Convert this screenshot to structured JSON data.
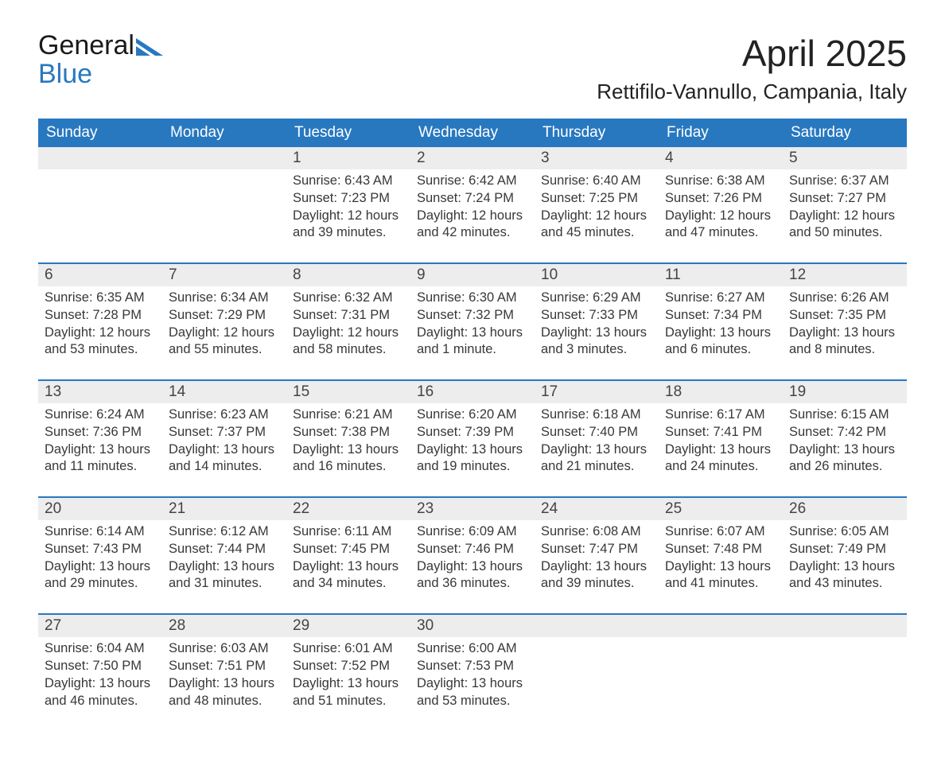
{
  "brand": {
    "part1": "General",
    "part2": "Blue"
  },
  "title": "April 2025",
  "subtitle": "Rettifilo-Vannullo, Campania, Italy",
  "colors": {
    "header_bg": "#2878c0",
    "header_text": "#ffffff",
    "daynum_bg": "#ededed",
    "week_divider": "#2878c0",
    "body_text": "#383838",
    "page_bg": "#ffffff"
  },
  "typography": {
    "title_fontsize": 46,
    "subtitle_fontsize": 26,
    "header_fontsize": 19,
    "daynum_fontsize": 19,
    "body_fontsize": 16.5,
    "font_family": "Arial"
  },
  "days_of_week": [
    "Sunday",
    "Monday",
    "Tuesday",
    "Wednesday",
    "Thursday",
    "Friday",
    "Saturday"
  ],
  "weeks": [
    [
      {
        "num": "",
        "lines": []
      },
      {
        "num": "",
        "lines": []
      },
      {
        "num": "1",
        "lines": [
          "Sunrise: 6:43 AM",
          "Sunset: 7:23 PM",
          "Daylight: 12 hours",
          "and 39 minutes."
        ]
      },
      {
        "num": "2",
        "lines": [
          "Sunrise: 6:42 AM",
          "Sunset: 7:24 PM",
          "Daylight: 12 hours",
          "and 42 minutes."
        ]
      },
      {
        "num": "3",
        "lines": [
          "Sunrise: 6:40 AM",
          "Sunset: 7:25 PM",
          "Daylight: 12 hours",
          "and 45 minutes."
        ]
      },
      {
        "num": "4",
        "lines": [
          "Sunrise: 6:38 AM",
          "Sunset: 7:26 PM",
          "Daylight: 12 hours",
          "and 47 minutes."
        ]
      },
      {
        "num": "5",
        "lines": [
          "Sunrise: 6:37 AM",
          "Sunset: 7:27 PM",
          "Daylight: 12 hours",
          "and 50 minutes."
        ]
      }
    ],
    [
      {
        "num": "6",
        "lines": [
          "Sunrise: 6:35 AM",
          "Sunset: 7:28 PM",
          "Daylight: 12 hours",
          "and 53 minutes."
        ]
      },
      {
        "num": "7",
        "lines": [
          "Sunrise: 6:34 AM",
          "Sunset: 7:29 PM",
          "Daylight: 12 hours",
          "and 55 minutes."
        ]
      },
      {
        "num": "8",
        "lines": [
          "Sunrise: 6:32 AM",
          "Sunset: 7:31 PM",
          "Daylight: 12 hours",
          "and 58 minutes."
        ]
      },
      {
        "num": "9",
        "lines": [
          "Sunrise: 6:30 AM",
          "Sunset: 7:32 PM",
          "Daylight: 13 hours",
          "and 1 minute."
        ]
      },
      {
        "num": "10",
        "lines": [
          "Sunrise: 6:29 AM",
          "Sunset: 7:33 PM",
          "Daylight: 13 hours",
          "and 3 minutes."
        ]
      },
      {
        "num": "11",
        "lines": [
          "Sunrise: 6:27 AM",
          "Sunset: 7:34 PM",
          "Daylight: 13 hours",
          "and 6 minutes."
        ]
      },
      {
        "num": "12",
        "lines": [
          "Sunrise: 6:26 AM",
          "Sunset: 7:35 PM",
          "Daylight: 13 hours",
          "and 8 minutes."
        ]
      }
    ],
    [
      {
        "num": "13",
        "lines": [
          "Sunrise: 6:24 AM",
          "Sunset: 7:36 PM",
          "Daylight: 13 hours",
          "and 11 minutes."
        ]
      },
      {
        "num": "14",
        "lines": [
          "Sunrise: 6:23 AM",
          "Sunset: 7:37 PM",
          "Daylight: 13 hours",
          "and 14 minutes."
        ]
      },
      {
        "num": "15",
        "lines": [
          "Sunrise: 6:21 AM",
          "Sunset: 7:38 PM",
          "Daylight: 13 hours",
          "and 16 minutes."
        ]
      },
      {
        "num": "16",
        "lines": [
          "Sunrise: 6:20 AM",
          "Sunset: 7:39 PM",
          "Daylight: 13 hours",
          "and 19 minutes."
        ]
      },
      {
        "num": "17",
        "lines": [
          "Sunrise: 6:18 AM",
          "Sunset: 7:40 PM",
          "Daylight: 13 hours",
          "and 21 minutes."
        ]
      },
      {
        "num": "18",
        "lines": [
          "Sunrise: 6:17 AM",
          "Sunset: 7:41 PM",
          "Daylight: 13 hours",
          "and 24 minutes."
        ]
      },
      {
        "num": "19",
        "lines": [
          "Sunrise: 6:15 AM",
          "Sunset: 7:42 PM",
          "Daylight: 13 hours",
          "and 26 minutes."
        ]
      }
    ],
    [
      {
        "num": "20",
        "lines": [
          "Sunrise: 6:14 AM",
          "Sunset: 7:43 PM",
          "Daylight: 13 hours",
          "and 29 minutes."
        ]
      },
      {
        "num": "21",
        "lines": [
          "Sunrise: 6:12 AM",
          "Sunset: 7:44 PM",
          "Daylight: 13 hours",
          "and 31 minutes."
        ]
      },
      {
        "num": "22",
        "lines": [
          "Sunrise: 6:11 AM",
          "Sunset: 7:45 PM",
          "Daylight: 13 hours",
          "and 34 minutes."
        ]
      },
      {
        "num": "23",
        "lines": [
          "Sunrise: 6:09 AM",
          "Sunset: 7:46 PM",
          "Daylight: 13 hours",
          "and 36 minutes."
        ]
      },
      {
        "num": "24",
        "lines": [
          "Sunrise: 6:08 AM",
          "Sunset: 7:47 PM",
          "Daylight: 13 hours",
          "and 39 minutes."
        ]
      },
      {
        "num": "25",
        "lines": [
          "Sunrise: 6:07 AM",
          "Sunset: 7:48 PM",
          "Daylight: 13 hours",
          "and 41 minutes."
        ]
      },
      {
        "num": "26",
        "lines": [
          "Sunrise: 6:05 AM",
          "Sunset: 7:49 PM",
          "Daylight: 13 hours",
          "and 43 minutes."
        ]
      }
    ],
    [
      {
        "num": "27",
        "lines": [
          "Sunrise: 6:04 AM",
          "Sunset: 7:50 PM",
          "Daylight: 13 hours",
          "and 46 minutes."
        ]
      },
      {
        "num": "28",
        "lines": [
          "Sunrise: 6:03 AM",
          "Sunset: 7:51 PM",
          "Daylight: 13 hours",
          "and 48 minutes."
        ]
      },
      {
        "num": "29",
        "lines": [
          "Sunrise: 6:01 AM",
          "Sunset: 7:52 PM",
          "Daylight: 13 hours",
          "and 51 minutes."
        ]
      },
      {
        "num": "30",
        "lines": [
          "Sunrise: 6:00 AM",
          "Sunset: 7:53 PM",
          "Daylight: 13 hours",
          "and 53 minutes."
        ]
      },
      {
        "num": "",
        "lines": []
      },
      {
        "num": "",
        "lines": []
      },
      {
        "num": "",
        "lines": []
      }
    ]
  ]
}
